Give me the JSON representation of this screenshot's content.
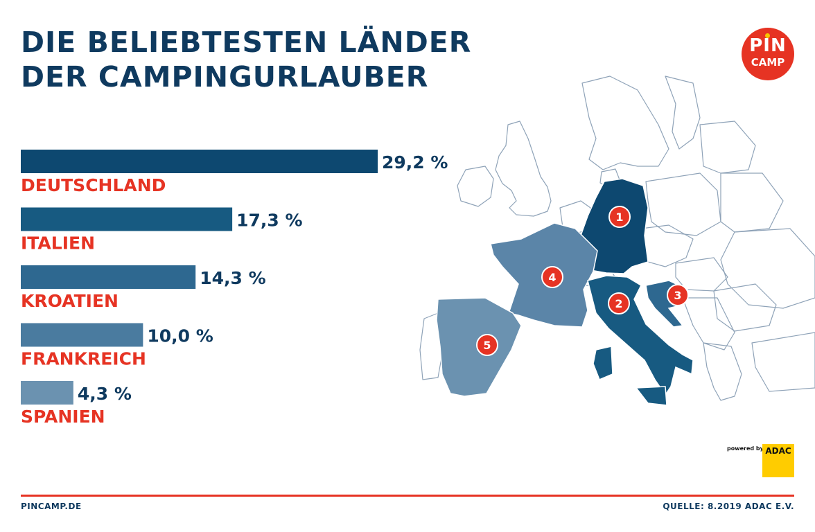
{
  "title_lines": [
    "DIE BELIEBTESTEN LÄNDER",
    "DER CAMPINGURLAUBER"
  ],
  "logo": {
    "line1": "PIN",
    "line2": "CAMP",
    "color": "#e63323"
  },
  "chart_data": {
    "type": "bar",
    "orientation": "horizontal",
    "categories": [
      "DEUTSCHLAND",
      "ITALIEN",
      "KROATIEN",
      "FRANKREICH",
      "SPANIEN"
    ],
    "values": [
      29.2,
      17.3,
      14.3,
      10.0,
      4.3
    ],
    "value_labels": [
      "29,2 %",
      "17,3 %",
      "14,3 %",
      "10,0 %",
      "4,3 %"
    ],
    "bar_colors": [
      "#0d4870",
      "#175a81",
      "#2e6890",
      "#4a7b9f",
      "#6b92b0"
    ],
    "label_color": "#e63323",
    "value_color": "#0f3a5f",
    "map_markers": [
      "1",
      "2",
      "3",
      "4",
      "5"
    ],
    "map_marker_categories": [
      "DEUTSCHLAND",
      "ITALIEN",
      "KROATIEN",
      "FRANKREICH",
      "SPANIEN"
    ],
    "grid": false,
    "legend": "none"
  },
  "powered_by": "powered by",
  "adac": "ADAC",
  "footer": {
    "left": "PINCAMP.DE",
    "right": "QUELLE: 8.2019 ADAC E.V."
  }
}
